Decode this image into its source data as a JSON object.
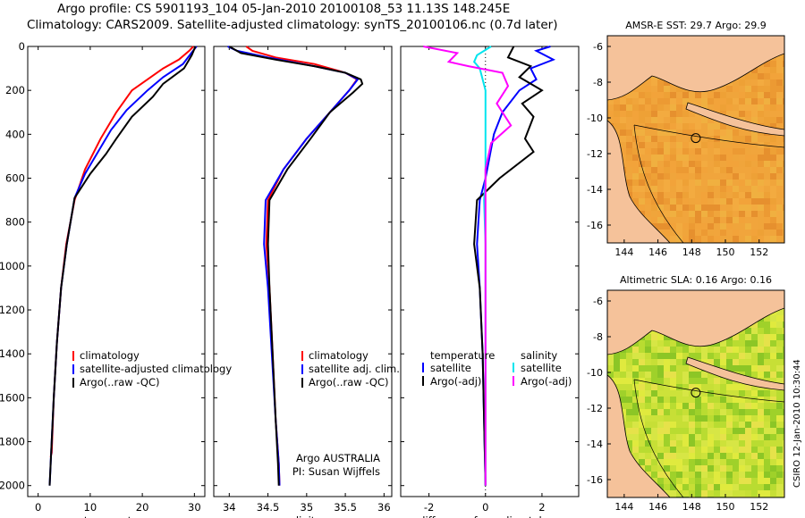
{
  "header": {
    "line1": "Argo profile: CS 5901193_104 05-Jan-2010 20100108_53 11.13S 148.245E",
    "line2": "Climatology: CARS2009. Satellite-adjusted climatology: synTS_20100106.nc (0.7d later)"
  },
  "credit": "CSIRO 12-Jan-2010 10:30:44",
  "colors": {
    "climatology": "#ff0000",
    "satellite": "#0000ff",
    "argo": "#000000",
    "sal_satellite": "#00e5ee",
    "sal_argo": "#ff00ff",
    "land": "#f5c29a",
    "ocean": "#f2a33a"
  },
  "chart_data": [
    {
      "type": "line",
      "name": "temperature-profile",
      "xlabel": "temperature",
      "ylabel": "",
      "xlim": [
        -2,
        32
      ],
      "ylim": [
        2050,
        0
      ],
      "y_reversed": true,
      "xticks": [
        0,
        10,
        20,
        30
      ],
      "yticks": [
        0,
        200,
        400,
        600,
        800,
        1000,
        1200,
        1400,
        1600,
        1800,
        2000
      ],
      "legend": [
        "climatology",
        "satellite-adjusted climatology",
        "Argo(..raw -QC)"
      ],
      "series": [
        {
          "name": "climatology",
          "color": "#ff0000",
          "points": [
            [
              29.8,
              0
            ],
            [
              29,
              20
            ],
            [
              27,
              60
            ],
            [
              24,
              100
            ],
            [
              21,
              150
            ],
            [
              18,
              200
            ],
            [
              15,
              300
            ],
            [
              12,
              420
            ],
            [
              9,
              560
            ],
            [
              7,
              700
            ],
            [
              5.4,
              900
            ],
            [
              4.4,
              1100
            ],
            [
              3.6,
              1350
            ],
            [
              3,
              1600
            ],
            [
              2.6,
              1850
            ],
            [
              2.4,
              1870
            ]
          ]
        },
        {
          "name": "satellite-adjusted climatology",
          "color": "#0000ff",
          "points": [
            [
              30.4,
              0
            ],
            [
              29.4,
              30
            ],
            [
              27.8,
              80
            ],
            [
              24,
              140
            ],
            [
              21,
              200
            ],
            [
              17,
              290
            ],
            [
              14,
              380
            ],
            [
              12,
              460
            ],
            [
              9,
              580
            ],
            [
              7,
              690
            ],
            [
              5.5,
              900
            ],
            [
              4.4,
              1100
            ],
            [
              3.6,
              1350
            ],
            [
              3,
              1600
            ],
            [
              2.5,
              1850
            ],
            [
              2.2,
              2000
            ]
          ]
        },
        {
          "name": "Argo(..raw -QC)",
          "color": "#000000",
          "points": [
            [
              30.2,
              0
            ],
            [
              29.5,
              40
            ],
            [
              28,
              100
            ],
            [
              24,
              170
            ],
            [
              22,
              230
            ],
            [
              18,
              320
            ],
            [
              15,
              420
            ],
            [
              13,
              490
            ],
            [
              10,
              580
            ],
            [
              7,
              690
            ],
            [
              5.5,
              900
            ],
            [
              4.4,
              1100
            ],
            [
              3.6,
              1350
            ],
            [
              3,
              1600
            ],
            [
              2.5,
              1850
            ],
            [
              2.2,
              2000
            ]
          ]
        }
      ]
    },
    {
      "type": "line",
      "name": "salinity-profile",
      "xlabel": "salinity",
      "ylabel": "",
      "xlim": [
        33.8,
        36.1
      ],
      "ylim": [
        2050,
        0
      ],
      "y_reversed": true,
      "xticks": [
        34,
        34.5,
        35,
        35.5,
        36
      ],
      "legend": [
        "climatology",
        "satellite adj. clim.",
        "Argo(..raw -QC)"
      ],
      "annotation": [
        "Argo AUSTRALIA",
        "PI: Susan Wijffels"
      ],
      "series": [
        {
          "name": "climatology",
          "color": "#ff0000",
          "points": [
            [
              34.22,
              0
            ],
            [
              34.3,
              20
            ],
            [
              34.6,
              50
            ],
            [
              35.1,
              80
            ],
            [
              35.5,
              120
            ],
            [
              35.65,
              150
            ],
            [
              35.55,
              200
            ],
            [
              35.3,
              300
            ],
            [
              35,
              420
            ],
            [
              34.7,
              560
            ],
            [
              34.5,
              700
            ],
            [
              34.48,
              900
            ],
            [
              34.52,
              1100
            ],
            [
              34.56,
              1400
            ],
            [
              34.6,
              1700
            ],
            [
              34.64,
              1900
            ],
            [
              34.65,
              2000
            ]
          ]
        },
        {
          "name": "satellite adj. clim.",
          "color": "#0000ff",
          "points": [
            [
              33.98,
              0
            ],
            [
              34.1,
              20
            ],
            [
              34.5,
              50
            ],
            [
              35.1,
              90
            ],
            [
              35.5,
              120
            ],
            [
              35.66,
              150
            ],
            [
              35.55,
              200
            ],
            [
              35.3,
              300
            ],
            [
              35,
              420
            ],
            [
              34.7,
              560
            ],
            [
              34.47,
              700
            ],
            [
              34.45,
              900
            ],
            [
              34.5,
              1100
            ],
            [
              34.55,
              1400
            ],
            [
              34.6,
              1700
            ],
            [
              34.64,
              1900
            ],
            [
              34.65,
              2000
            ]
          ]
        },
        {
          "name": "Argo(..raw -QC)",
          "color": "#000000",
          "points": [
            [
              34.0,
              0
            ],
            [
              34.15,
              30
            ],
            [
              34.6,
              60
            ],
            [
              35.1,
              90
            ],
            [
              35.5,
              120
            ],
            [
              35.7,
              150
            ],
            [
              35.72,
              170
            ],
            [
              35.6,
              210
            ],
            [
              35.3,
              300
            ],
            [
              35.05,
              420
            ],
            [
              34.75,
              560
            ],
            [
              34.52,
              700
            ],
            [
              34.5,
              900
            ],
            [
              34.52,
              1100
            ],
            [
              34.56,
              1400
            ],
            [
              34.6,
              1700
            ],
            [
              34.63,
              1900
            ],
            [
              34.64,
              2000
            ]
          ]
        }
      ]
    },
    {
      "type": "line",
      "name": "difference-profile",
      "xlabel": "difference from climatology",
      "ylabel": "",
      "xlim": [
        -3,
        3.3
      ],
      "ylim": [
        2050,
        0
      ],
      "y_reversed": true,
      "xticks": [
        -2,
        0,
        2
      ],
      "legend": [
        "temperature",
        "satellite",
        "Argo(-adj)",
        "salinity",
        "satellite",
        "Argo(-adj)"
      ],
      "series": [
        {
          "name": "temperature satellite",
          "color": "#0000ff",
          "points": [
            [
              2.3,
              0
            ],
            [
              1.8,
              20
            ],
            [
              2.4,
              60
            ],
            [
              1.6,
              100
            ],
            [
              1.8,
              150
            ],
            [
              1.2,
              200
            ],
            [
              0.6,
              300
            ],
            [
              0.3,
              400
            ],
            [
              0,
              600
            ],
            [
              -0.2,
              700
            ],
            [
              -0.3,
              900
            ],
            [
              -0.2,
              1100
            ],
            [
              -0.1,
              1400
            ],
            [
              -0.05,
              1700
            ],
            [
              0,
              2000
            ]
          ]
        },
        {
          "name": "temperature Argo(-adj)",
          "color": "#000000",
          "points": [
            [
              1.0,
              0
            ],
            [
              0.8,
              50
            ],
            [
              1.6,
              90
            ],
            [
              1.2,
              140
            ],
            [
              2.0,
              200
            ],
            [
              1.3,
              260
            ],
            [
              1.7,
              320
            ],
            [
              1.4,
              420
            ],
            [
              1.7,
              480
            ],
            [
              0.5,
              600
            ],
            [
              -0.3,
              700
            ],
            [
              -0.4,
              900
            ],
            [
              -0.2,
              1100
            ],
            [
              -0.1,
              1400
            ],
            [
              -0.05,
              1700
            ],
            [
              0,
              2000
            ]
          ]
        },
        {
          "name": "salinity satellite",
          "color": "#00e5ee",
          "points": [
            [
              0.2,
              0
            ],
            [
              -0.3,
              40
            ],
            [
              -0.4,
              70
            ],
            [
              -0.2,
              100
            ],
            [
              0,
              200
            ],
            [
              0,
              400
            ],
            [
              0,
              600
            ],
            [
              -0.05,
              700
            ],
            [
              0,
              900
            ],
            [
              0,
              1200
            ],
            [
              0,
              1600
            ],
            [
              0,
              2000
            ]
          ]
        },
        {
          "name": "salinity Argo(-adj)",
          "color": "#ff00ff",
          "points": [
            [
              -2.2,
              0
            ],
            [
              -1.0,
              30
            ],
            [
              -1.3,
              70
            ],
            [
              -0.6,
              90
            ],
            [
              0.6,
              120
            ],
            [
              0.8,
              180
            ],
            [
              0.4,
              260
            ],
            [
              0.9,
              360
            ],
            [
              0.2,
              440
            ],
            [
              0,
              560
            ],
            [
              0,
              700
            ],
            [
              0,
              900
            ],
            [
              0,
              1200
            ],
            [
              0,
              1600
            ],
            [
              0,
              2000
            ]
          ]
        }
      ]
    },
    {
      "type": "heatmap",
      "name": "sst-map",
      "title": "AMSR-E SST: 29.7 Argo: 29.9",
      "xlim": [
        143,
        153.5
      ],
      "ylim": [
        -17,
        -5.4
      ],
      "xticks": [
        144,
        146,
        148,
        150,
        152
      ],
      "yticks": [
        -6,
        -8,
        -10,
        -12,
        -14,
        -16
      ],
      "marker": [
        148.245,
        -11.13
      ]
    },
    {
      "type": "heatmap",
      "name": "sla-map",
      "title": "Altimetric SLA: 0.16 Argo: 0.16",
      "xlim": [
        143,
        153.5
      ],
      "ylim": [
        -17,
        -5.4
      ],
      "xticks": [
        144,
        146,
        148,
        150,
        152
      ],
      "yticks": [
        -6,
        -8,
        -10,
        -12,
        -14,
        -16
      ],
      "marker": [
        148.245,
        -11.13
      ]
    }
  ]
}
